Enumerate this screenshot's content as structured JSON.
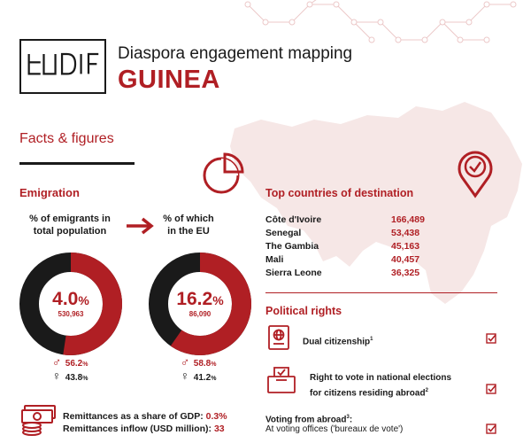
{
  "header": {
    "logo_text": "EUDIF",
    "title": "Diaspora engagement mapping",
    "country": "GUINEA"
  },
  "facts_heading": "Facts & figures",
  "emigration": {
    "heading": "Emigration",
    "col1_label_line1": "% of emigrants in",
    "col1_label_line2": "total population",
    "col2_label_line1": "% of which",
    "col2_label_line2": "in the EU",
    "donut1": {
      "percent": 4.0,
      "value_text": "4.0",
      "unit": "%",
      "count": "530,963",
      "male": "56.2",
      "female": "43.8"
    },
    "donut2": {
      "percent": 16.2,
      "value_text": "16.2",
      "unit": "%",
      "count": "86,090",
      "male": "58.8",
      "female": "41.2"
    },
    "pct_suffix": "%",
    "male_symbol": "♂",
    "female_symbol": "♀"
  },
  "remittances": {
    "gdp_label": "Remittances as a share of GDP: ",
    "gdp_value": "0.3%",
    "inflow_label": "Remittances inflow (USD million): ",
    "inflow_value": "33"
  },
  "destinations": {
    "heading": "Top countries of destination",
    "rows": [
      {
        "country": "Côte d'Ivoire",
        "value": "166,489"
      },
      {
        "country": "Senegal",
        "value": "53,438"
      },
      {
        "country": "The Gambia",
        "value": "45,163"
      },
      {
        "country": "Mali",
        "value": "40,457"
      },
      {
        "country": "Sierra Leone",
        "value": "36,325"
      }
    ]
  },
  "political": {
    "heading": "Political rights",
    "dual_citizenship": "Dual citizenship",
    "dual_sup": "1",
    "vote_line1": "Right to vote in national elections",
    "vote_line2": "for citizens residing abroad",
    "vote_sup": "2",
    "voting_from_abroad": "Voting from abroad",
    "voting_sup": "3",
    "voting_colon": ":",
    "voting_method": "At voting offices ('bureaux de vote')"
  },
  "colors": {
    "accent": "#b01f24",
    "dark": "#1a1a1a",
    "map": "#f6e7e6"
  }
}
